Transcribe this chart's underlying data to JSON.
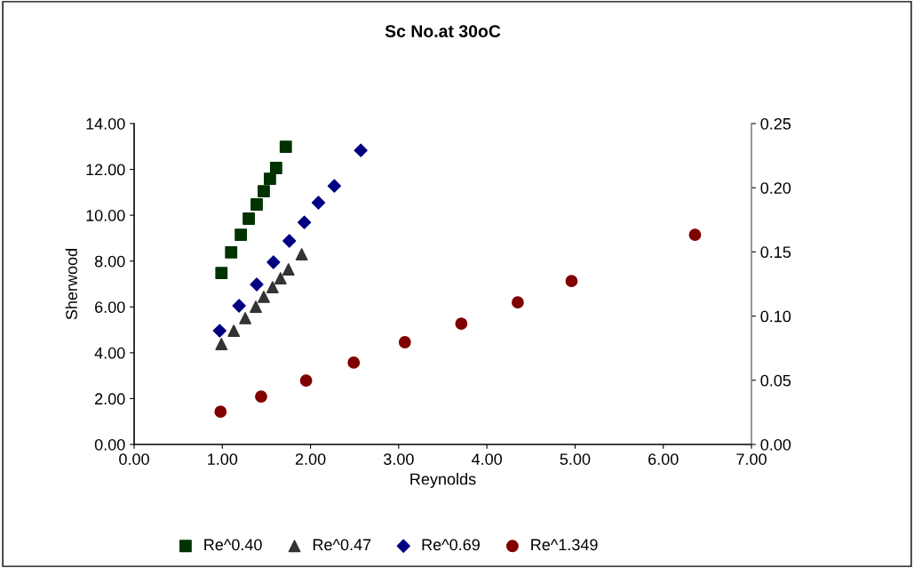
{
  "chart_data": {
    "type": "scatter",
    "title": "Sc No.at 30oC",
    "xlabel": "Reynolds",
    "ylabel": "Sherwood",
    "xlim": [
      0,
      7
    ],
    "xticks": [
      {
        "value": 0,
        "label": "0.00"
      },
      {
        "value": 1,
        "label": "1.00"
      },
      {
        "value": 2,
        "label": "2.00"
      },
      {
        "value": 3,
        "label": "3.00"
      },
      {
        "value": 4,
        "label": "4.00"
      },
      {
        "value": 5,
        "label": "5.00"
      },
      {
        "value": 6,
        "label": "6.00"
      },
      {
        "value": 7,
        "label": "7.00"
      }
    ],
    "ylim": [
      0,
      14
    ],
    "yticks": [
      {
        "value": 0,
        "label": "0.00"
      },
      {
        "value": 2,
        "label": "2.00"
      },
      {
        "value": 4,
        "label": "4.00"
      },
      {
        "value": 6,
        "label": "6.00"
      },
      {
        "value": 8,
        "label": "8.00"
      },
      {
        "value": 10,
        "label": "10.00"
      },
      {
        "value": 12,
        "label": "12.00"
      },
      {
        "value": 14,
        "label": "14.00"
      }
    ],
    "y2lim": [
      0,
      0.25
    ],
    "y2ticks": [
      {
        "value": 0,
        "label": "0.00"
      },
      {
        "value": 0.05,
        "label": "0.05"
      },
      {
        "value": 0.1,
        "label": "0.10"
      },
      {
        "value": 0.15,
        "label": "0.15"
      },
      {
        "value": 0.2,
        "label": "0.20"
      },
      {
        "value": 0.25,
        "label": "0.25"
      }
    ],
    "grid": false,
    "legend": "bottom",
    "series": [
      {
        "name": "Re^0.40",
        "color": "#003300",
        "marker": "square",
        "x": [
          0.99,
          1.1,
          1.21,
          1.3,
          1.39,
          1.47,
          1.54,
          1.61,
          1.72
        ],
        "values": [
          7.48,
          8.38,
          9.15,
          9.85,
          10.47,
          11.05,
          11.59,
          12.06,
          12.99
        ]
      },
      {
        "name": "Re^0.47",
        "color": "#333333",
        "marker": "triangle",
        "x": [
          0.99,
          1.13,
          1.26,
          1.38,
          1.47,
          1.57,
          1.66,
          1.75,
          1.9
        ],
        "values": [
          4.38,
          4.96,
          5.51,
          6.01,
          6.44,
          6.86,
          7.25,
          7.64,
          8.3
        ]
      },
      {
        "name": "Re^0.69",
        "color": "#000080",
        "marker": "diamond",
        "x": [
          0.97,
          1.19,
          1.39,
          1.58,
          1.76,
          1.93,
          2.09,
          2.27,
          2.57
        ],
        "values": [
          4.96,
          6.05,
          6.98,
          7.95,
          8.88,
          9.69,
          10.55,
          11.28,
          12.83
        ]
      },
      {
        "name": "Re^1.349",
        "color": "#800000",
        "marker": "circle",
        "x": [
          0.98,
          1.44,
          1.95,
          2.49,
          3.07,
          3.71,
          4.35,
          4.96,
          6.36
        ],
        "values": [
          1.43,
          2.09,
          2.79,
          3.57,
          4.46,
          5.27,
          6.2,
          7.13,
          9.15
        ]
      }
    ]
  }
}
